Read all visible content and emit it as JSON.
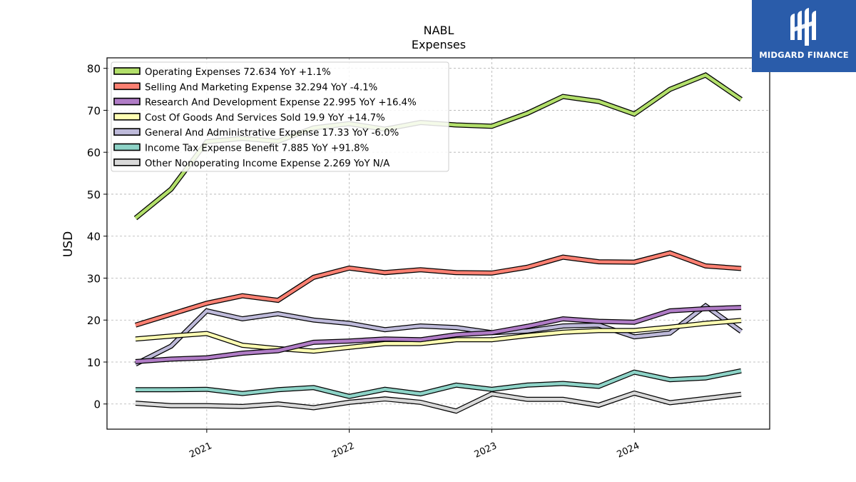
{
  "brand": {
    "name": "MIDGARD FINANCE",
    "accent": "#2a5caa",
    "logo_icon": "midgard-logo-icon"
  },
  "chart_data": {
    "type": "line",
    "title": "NABL",
    "subtitle": "Expenses",
    "xlabel": "",
    "ylabel": "USD",
    "ylim": [
      -6,
      82.5
    ],
    "yticks": [
      0,
      10,
      20,
      30,
      40,
      50,
      60,
      70,
      80
    ],
    "xlim": [
      2020.3,
      2024.95
    ],
    "xticks": [
      {
        "value": 2021,
        "label": "2021"
      },
      {
        "value": 2022,
        "label": "2022"
      },
      {
        "value": 2023,
        "label": "2023"
      },
      {
        "value": 2024,
        "label": "2024"
      }
    ],
    "grid": true,
    "legend_position": "top-left",
    "x": [
      2020.5,
      2020.75,
      2021.0,
      2021.25,
      2021.5,
      2021.75,
      2022.0,
      2022.25,
      2022.5,
      2022.75,
      2023.0,
      2023.25,
      2023.5,
      2023.75,
      2024.0,
      2024.25,
      2024.5,
      2024.75
    ],
    "series": [
      {
        "name": "Operating Expenses",
        "legend": "Operating Expenses  72.634 YoY +1.1%",
        "color": "#b2df6a",
        "values": [
          44.3,
          51.2,
          62.5,
          63.3,
          62.6,
          65.8,
          66.8,
          65.5,
          67.1,
          66.5,
          66.2,
          69.3,
          73.3,
          72.1,
          69.1,
          75.0,
          78.4,
          72.6
        ]
      },
      {
        "name": "Selling And Marketing Expense",
        "legend": "Selling And Marketing Expense  32.294 YoY -4.1%",
        "color": "#fb8072",
        "values": [
          18.8,
          21.4,
          24.0,
          25.8,
          24.7,
          30.2,
          32.4,
          31.3,
          32.0,
          31.3,
          31.2,
          32.6,
          35.0,
          33.9,
          33.8,
          36.0,
          32.9,
          32.3
        ]
      },
      {
        "name": "Research And Development Expense",
        "legend": "Research And Development Expense  22.995 YoY +16.4%",
        "color": "#b07cc6",
        "values": [
          10.1,
          10.7,
          11.0,
          12.1,
          12.7,
          14.7,
          15.0,
          15.5,
          15.3,
          16.5,
          17.0,
          18.5,
          20.3,
          19.7,
          19.5,
          22.2,
          22.7,
          23.0
        ]
      },
      {
        "name": "Cost Of Goods And Services Sold",
        "legend": "Cost Of Goods And Services Sold  19.9 YoY +14.7%",
        "color": "#ffffb3",
        "values": [
          15.5,
          16.2,
          16.8,
          14.0,
          13.2,
          12.6,
          13.5,
          14.4,
          14.4,
          15.3,
          15.3,
          16.3,
          17.1,
          17.5,
          17.5,
          18.3,
          19.2,
          19.9
        ]
      },
      {
        "name": "General And Administrative Expense",
        "legend": "General And Administrative Expense  17.33 YoY -6.0%",
        "color": "#bebada",
        "values": [
          9.5,
          13.8,
          22.2,
          20.3,
          21.5,
          20.0,
          19.2,
          17.7,
          18.6,
          18.2,
          17.0,
          17.4,
          18.6,
          18.8,
          16.0,
          16.9,
          23.4,
          17.3
        ]
      },
      {
        "name": "Income Tax Expense Benefit",
        "legend": "Income Tax Expense Benefit  7.885 YoY +91.8%",
        "color": "#8dd3c7",
        "values": [
          3.4,
          3.4,
          3.5,
          2.5,
          3.4,
          3.9,
          1.8,
          3.5,
          2.4,
          4.5,
          3.5,
          4.5,
          4.9,
          4.2,
          7.6,
          5.8,
          6.2,
          7.9
        ]
      },
      {
        "name": "Other Nonoperating Income Expense",
        "legend": "Other Nonoperating Income Expense  2.269 YoY N/A",
        "color": "#d9d9d9",
        "values": [
          0.2,
          -0.4,
          -0.4,
          -0.6,
          0.0,
          -0.9,
          0.4,
          1.2,
          0.4,
          -1.7,
          2.4,
          1.1,
          1.1,
          -0.3,
          2.6,
          0.3,
          1.3,
          2.3
        ]
      }
    ]
  }
}
